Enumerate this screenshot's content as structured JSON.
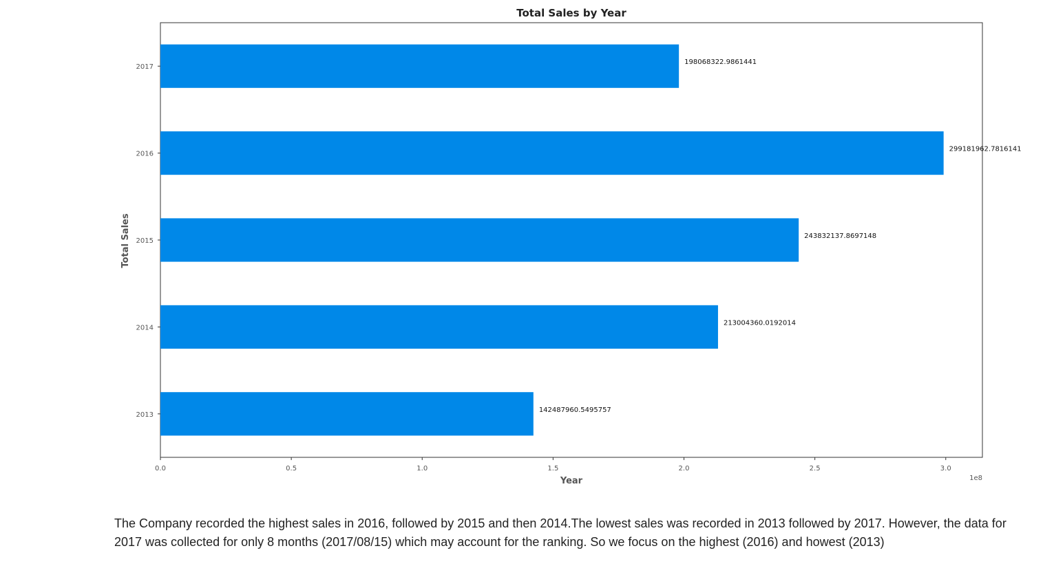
{
  "chart_data": {
    "type": "bar",
    "orientation": "horizontal",
    "title": "Total Sales by Year",
    "xlabel": "Year",
    "ylabel": "Total Sales",
    "categories": [
      "2013",
      "2014",
      "2015",
      "2016",
      "2017"
    ],
    "values": [
      142487960.5495757,
      213004360.0192014,
      243832137.8697148,
      299181962.7816141,
      198068322.9861441
    ],
    "data_labels": [
      "142487960.5495757",
      "213004360.0192014",
      "243832137.8697148",
      "299181962.7816141",
      "198068322.9861441"
    ],
    "xlim": [
      0,
      314000000
    ],
    "xticks": [
      0,
      50000000,
      100000000,
      150000000,
      200000000,
      250000000,
      300000000
    ],
    "xtick_labels": [
      "0.0",
      "0.5",
      "1.0",
      "1.5",
      "2.0",
      "2.5",
      "3.0"
    ],
    "x_offset_label": "1e8",
    "bar_color": "#0088e8",
    "grid": false,
    "legend": "none"
  },
  "caption": "The Company recorded the highest sales in 2016, followed by 2015 and then 2014.The lowest sales was recorded in 2013 followed by 2017. However, the data for 2017 was collected for only 8 months (2017/08/15) which may account for the ranking. So we focus on the highest (2016) and howest (2013)"
}
